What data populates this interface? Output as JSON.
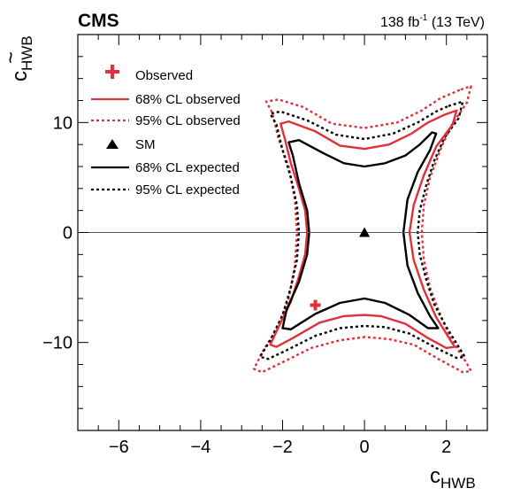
{
  "chart_data": {
    "type": "contour",
    "experiment": "CMS",
    "luminosity": {
      "value": "138 fb",
      "exponent": "-1",
      "energy": "(13 TeV)"
    },
    "xlabel": {
      "main": "c",
      "sub": "HWB"
    },
    "ylabel": {
      "main": "c",
      "sub": "HWB",
      "accent": "~"
    },
    "xlim": [
      -7,
      3
    ],
    "ylim": [
      -18,
      18
    ],
    "xticks": [
      -6,
      -4,
      -2,
      0,
      2
    ],
    "xtick_labels": [
      "−6",
      "−4",
      "−2",
      "0",
      "2"
    ],
    "yticks": [
      -10,
      0,
      10
    ],
    "ytick_labels": [
      "−10",
      "0",
      "10"
    ],
    "colors": {
      "observed": "#e0303a",
      "expected": "#000000",
      "zero_line": "#555555"
    },
    "legend_position": "top-left",
    "legend": [
      {
        "label": "Observed",
        "marker": "cross",
        "color": "#e0303a"
      },
      {
        "label": "68% CL observed",
        "line": "solid",
        "color": "#e0303a"
      },
      {
        "label": "95% CL observed",
        "line": "dotted",
        "color": "#e0303a"
      },
      {
        "label": "SM",
        "marker": "triangle",
        "color": "#000000"
      },
      {
        "label": "68% CL expected",
        "line": "solid",
        "color": "#000000"
      },
      {
        "label": "95% CL expected",
        "line": "dotted",
        "color": "#000000"
      }
    ],
    "points": {
      "observed": {
        "x": -1.2,
        "y": -6.6
      },
      "sm": {
        "x": 0.0,
        "y": 0.0
      }
    },
    "contours": [
      {
        "name": "95% CL observed",
        "style": "dotted",
        "color": "#e0303a",
        "points": [
          [
            2.35,
            13.0
          ],
          [
            2.6,
            13.3
          ],
          [
            2.5,
            11.8
          ],
          [
            2.1,
            9.6
          ],
          [
            1.85,
            7.5
          ],
          [
            1.6,
            5.0
          ],
          [
            1.45,
            2.5
          ],
          [
            1.4,
            0
          ],
          [
            1.45,
            -2.5
          ],
          [
            1.6,
            -5.0
          ],
          [
            1.85,
            -7.5
          ],
          [
            2.1,
            -9.6
          ],
          [
            2.5,
            -11.9
          ],
          [
            2.6,
            -12.6
          ],
          [
            2.4,
            -12.7
          ],
          [
            1.85,
            -11.6
          ],
          [
            1.2,
            -10.2
          ],
          [
            0.6,
            -9.7
          ],
          [
            0,
            -9.5
          ],
          [
            -0.6,
            -9.8
          ],
          [
            -1.3,
            -10.5
          ],
          [
            -2.0,
            -11.8
          ],
          [
            -2.5,
            -12.7
          ],
          [
            -2.7,
            -12.4
          ],
          [
            -2.5,
            -10.9
          ],
          [
            -2.1,
            -8.5
          ],
          [
            -1.85,
            -6.0
          ],
          [
            -1.7,
            -3.0
          ],
          [
            -1.65,
            0
          ],
          [
            -1.7,
            3.0
          ],
          [
            -1.85,
            6.0
          ],
          [
            -2.1,
            8.5
          ],
          [
            -2.25,
            10.9
          ],
          [
            -2.4,
            11.9
          ],
          [
            -2.1,
            12.1
          ],
          [
            -1.5,
            11.4
          ],
          [
            -0.8,
            9.9
          ],
          [
            0,
            9.5
          ],
          [
            0.8,
            10.0
          ],
          [
            1.4,
            11.1
          ],
          [
            1.85,
            12.2
          ]
        ]
      },
      {
        "name": "95% CL expected",
        "style": "dotted",
        "color": "#000000",
        "points": [
          [
            2.05,
            11.5
          ],
          [
            2.4,
            11.9
          ],
          [
            2.3,
            10.4
          ],
          [
            1.95,
            8.6
          ],
          [
            1.7,
            6.5
          ],
          [
            1.5,
            4.2
          ],
          [
            1.35,
            2.0
          ],
          [
            1.3,
            0
          ],
          [
            1.35,
            -2.0
          ],
          [
            1.5,
            -4.2
          ],
          [
            1.7,
            -6.5
          ],
          [
            2.0,
            -8.6
          ],
          [
            2.35,
            -10.7
          ],
          [
            2.45,
            -11.3
          ],
          [
            2.25,
            -11.4
          ],
          [
            1.75,
            -10.5
          ],
          [
            1.1,
            -9.2
          ],
          [
            0.5,
            -8.6
          ],
          [
            0,
            -8.5
          ],
          [
            -0.6,
            -8.7
          ],
          [
            -1.2,
            -9.4
          ],
          [
            -1.9,
            -10.7
          ],
          [
            -2.35,
            -11.5
          ],
          [
            -2.55,
            -11.3
          ],
          [
            -2.3,
            -9.8
          ],
          [
            -2.0,
            -7.5
          ],
          [
            -1.8,
            -5.0
          ],
          [
            -1.65,
            -2.5
          ],
          [
            -1.6,
            0
          ],
          [
            -1.65,
            2.5
          ],
          [
            -1.8,
            5.0
          ],
          [
            -2.0,
            7.5
          ],
          [
            -2.15,
            9.8
          ],
          [
            -2.3,
            10.8
          ],
          [
            -2.05,
            11.0
          ],
          [
            -1.4,
            10.2
          ],
          [
            -0.7,
            8.9
          ],
          [
            0,
            8.5
          ],
          [
            0.7,
            9.0
          ],
          [
            1.3,
            10.0
          ],
          [
            1.75,
            11.0
          ]
        ]
      },
      {
        "name": "68% CL observed",
        "style": "solid",
        "color": "#e0303a",
        "points": [
          [
            1.95,
            10.7
          ],
          [
            2.25,
            11.1
          ],
          [
            2.15,
            9.8
          ],
          [
            1.75,
            7.8
          ],
          [
            1.45,
            5.2
          ],
          [
            1.2,
            2.5
          ],
          [
            1.1,
            0
          ],
          [
            1.2,
            -2.5
          ],
          [
            1.45,
            -5.2
          ],
          [
            1.75,
            -7.7
          ],
          [
            2.1,
            -9.8
          ],
          [
            2.2,
            -10.4
          ],
          [
            2.0,
            -10.5
          ],
          [
            1.55,
            -9.6
          ],
          [
            1.0,
            -8.3
          ],
          [
            0.4,
            -7.6
          ],
          [
            0,
            -7.5
          ],
          [
            -0.5,
            -7.6
          ],
          [
            -1.1,
            -8.2
          ],
          [
            -1.75,
            -9.6
          ],
          [
            -2.15,
            -10.4
          ],
          [
            -2.3,
            -10.2
          ],
          [
            -2.1,
            -8.6
          ],
          [
            -1.8,
            -6.3
          ],
          [
            -1.6,
            -4.0
          ],
          [
            -1.45,
            -2.0
          ],
          [
            -1.4,
            0
          ],
          [
            -1.45,
            2.0
          ],
          [
            -1.6,
            4.0
          ],
          [
            -1.8,
            6.3
          ],
          [
            -1.95,
            8.6
          ],
          [
            -2.05,
            9.9
          ],
          [
            -1.85,
            10.1
          ],
          [
            -1.2,
            9.2
          ],
          [
            -0.6,
            7.9
          ],
          [
            0,
            7.6
          ],
          [
            0.6,
            8.0
          ],
          [
            1.15,
            9.0
          ],
          [
            1.55,
            10.0
          ]
        ]
      },
      {
        "name": "68% CL expected",
        "style": "solid",
        "color": "#000000",
        "points": [
          [
            1.65,
            9.1
          ],
          [
            1.75,
            9.0
          ],
          [
            1.6,
            7.5
          ],
          [
            1.3,
            5.5
          ],
          [
            1.05,
            3.0
          ],
          [
            0.95,
            0
          ],
          [
            1.05,
            -3.0
          ],
          [
            1.3,
            -5.5
          ],
          [
            1.6,
            -7.6
          ],
          [
            1.8,
            -8.7
          ],
          [
            1.55,
            -8.7
          ],
          [
            1.1,
            -7.5
          ],
          [
            0.5,
            -6.4
          ],
          [
            0,
            -6.0
          ],
          [
            -0.6,
            -6.4
          ],
          [
            -1.2,
            -7.4
          ],
          [
            -1.8,
            -8.8
          ],
          [
            -2.0,
            -8.7
          ],
          [
            -1.9,
            -7.0
          ],
          [
            -1.6,
            -4.5
          ],
          [
            -1.4,
            -2.0
          ],
          [
            -1.35,
            0
          ],
          [
            -1.4,
            2.0
          ],
          [
            -1.6,
            4.5
          ],
          [
            -1.75,
            7.0
          ],
          [
            -1.85,
            8.2
          ],
          [
            -1.6,
            8.4
          ],
          [
            -1.0,
            7.2
          ],
          [
            -0.5,
            6.3
          ],
          [
            0,
            6.0
          ],
          [
            0.5,
            6.3
          ],
          [
            1.0,
            7.0
          ],
          [
            1.35,
            8.0
          ]
        ]
      }
    ]
  }
}
